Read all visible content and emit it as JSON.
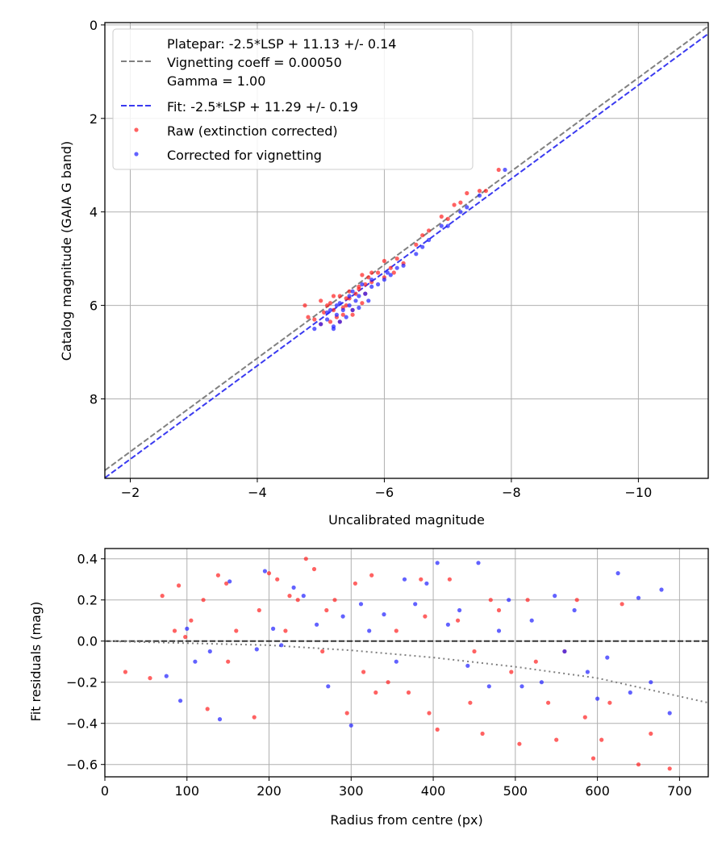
{
  "chart_data": [
    {
      "type": "scatter",
      "title": "",
      "xlabel": "Uncalibrated magnitude",
      "ylabel": "Catalog magnitude (GAIA G band)",
      "xlim": [
        -1.6,
        -11.1
      ],
      "ylim": [
        9.7,
        -0.05
      ],
      "x_inverted": true,
      "y_inverted": true,
      "grid": true,
      "xticks": [
        -2,
        -4,
        -6,
        -8,
        -10
      ],
      "xtick_labels": [
        "−2",
        "−4",
        "−6",
        "−8",
        "−10"
      ],
      "yticks": [
        0,
        2,
        4,
        6,
        8
      ],
      "ytick_labels": [
        "0",
        "2",
        "4",
        "6",
        "8"
      ],
      "legend_position": "top-left",
      "legend": [
        {
          "label": "Platepar: -2.5*LSP + 11.13 +/- 0.14",
          "marker": "none"
        },
        {
          "label": "Vignetting coeff = 0.00050",
          "marker": "dashed-line",
          "color": "#808080"
        },
        {
          "label": "Gamma = 1.00",
          "marker": "none"
        },
        {
          "label": "Fit: -2.5*LSP + 11.29 +/- 0.19",
          "marker": "dashed-line",
          "color": "#3a3af0"
        },
        {
          "label": "Raw (extinction corrected)",
          "marker": "dot",
          "color": "#ff2020"
        },
        {
          "label": "Corrected for vignetting",
          "marker": "dot",
          "color": "#2020ff"
        }
      ],
      "lines": [
        {
          "name": "Platepar",
          "style": "dashed",
          "color": "#808080",
          "slope": 1,
          "intercept": 11.13
        },
        {
          "name": "Fit",
          "style": "dashed",
          "color": "#3a3af0",
          "slope": 1,
          "intercept": 11.29
        }
      ],
      "series": [
        {
          "name": "Raw (extinction corrected)",
          "color": "#ff2020",
          "x": [
            -4.8,
            -4.9,
            -5.0,
            -5.05,
            -5.1,
            -5.15,
            -5.2,
            -5.25,
            -5.3,
            -5.35,
            -5.4,
            -5.45,
            -5.5,
            -5.55,
            -5.6,
            -5.65,
            -5.7,
            -5.75,
            -5.8,
            -5.9,
            -6.0,
            -6.1,
            -6.2,
            -6.3,
            -6.5,
            -6.6,
            -6.7,
            -6.9,
            -7.0,
            -7.1,
            -7.2,
            -7.3,
            -7.5,
            -7.6,
            -7.8,
            -5.2,
            -5.3,
            -5.4,
            -5.6,
            -5.8,
            -5.0,
            -5.5,
            -5.7,
            -6.0,
            -5.35,
            -5.15,
            -4.75,
            -5.45,
            -5.65,
            -6.15
          ],
          "y": [
            6.25,
            6.3,
            5.9,
            6.15,
            6.0,
            5.95,
            6.1,
            6.25,
            5.8,
            6.05,
            6.0,
            5.7,
            6.1,
            5.75,
            5.6,
            5.95,
            5.55,
            5.4,
            5.5,
            5.3,
            5.4,
            5.2,
            5.0,
            5.1,
            4.7,
            4.5,
            4.4,
            4.1,
            4.15,
            3.85,
            3.8,
            3.6,
            3.55,
            3.55,
            3.1,
            5.8,
            6.35,
            5.85,
            5.65,
            5.3,
            6.4,
            6.2,
            5.75,
            5.05,
            6.2,
            6.35,
            6.0,
            5.85,
            5.35,
            5.3
          ]
        },
        {
          "name": "Corrected for vignetting",
          "color": "#2020ff",
          "x": [
            -4.9,
            -5.0,
            -5.1,
            -5.15,
            -5.2,
            -5.25,
            -5.3,
            -5.35,
            -5.4,
            -5.45,
            -5.5,
            -5.55,
            -5.6,
            -5.7,
            -5.75,
            -5.8,
            -5.9,
            -6.0,
            -6.1,
            -6.2,
            -6.3,
            -6.5,
            -6.6,
            -6.7,
            -6.9,
            -7.0,
            -7.2,
            -7.3,
            -7.5,
            -7.9,
            -5.1,
            -5.25,
            -5.45,
            -5.6,
            -5.3,
            -5.5,
            -5.8,
            -6.05,
            -5.2,
            -5.65
          ],
          "y": [
            6.5,
            6.4,
            6.3,
            6.1,
            6.45,
            6.2,
            6.35,
            6.1,
            6.25,
            6.0,
            6.1,
            5.9,
            5.8,
            5.75,
            5.9,
            5.6,
            5.55,
            5.45,
            5.35,
            5.2,
            5.15,
            4.9,
            4.75,
            4.6,
            4.3,
            4.3,
            4.0,
            3.9,
            3.65,
            3.1,
            6.15,
            6.0,
            5.8,
            6.05,
            5.95,
            5.7,
            5.45,
            5.3,
            6.5,
            5.55
          ]
        }
      ]
    },
    {
      "type": "scatter",
      "title": "",
      "xlabel": "Radius from centre (px)",
      "ylabel": "Fit residuals (mag)",
      "xlim": [
        0,
        735
      ],
      "ylim": [
        -0.66,
        0.45
      ],
      "grid": true,
      "xticks": [
        0,
        100,
        200,
        300,
        400,
        500,
        600,
        700
      ],
      "xtick_labels": [
        "0",
        "100",
        "200",
        "300",
        "400",
        "500",
        "600",
        "700"
      ],
      "yticks": [
        0.4,
        0.2,
        0.0,
        -0.2,
        -0.4,
        -0.6
      ],
      "ytick_labels": [
        "0.4",
        "0.2",
        "0.0",
        "−0.2",
        "−0.4",
        "−0.6"
      ],
      "lines": [
        {
          "name": "zero",
          "style": "dashed",
          "color": "#333333",
          "x": [
            0,
            735
          ],
          "y": [
            0,
            0
          ]
        },
        {
          "name": "vignetting trend",
          "style": "dotted",
          "color": "#808080",
          "x": [
            0,
            100,
            200,
            300,
            400,
            500,
            600,
            735
          ],
          "y": [
            0.0,
            -0.01,
            -0.02,
            -0.045,
            -0.08,
            -0.125,
            -0.18,
            -0.3
          ]
        }
      ],
      "series": [
        {
          "name": "Raw (extinction corrected)",
          "color": "#ff2020",
          "x": [
            25,
            55,
            70,
            85,
            90,
            98,
            105,
            120,
            125,
            138,
            148,
            160,
            182,
            188,
            200,
            210,
            225,
            235,
            245,
            255,
            265,
            280,
            295,
            305,
            315,
            325,
            345,
            355,
            370,
            385,
            395,
            405,
            420,
            430,
            445,
            460,
            470,
            480,
            495,
            505,
            515,
            525,
            540,
            550,
            560,
            575,
            585,
            595,
            605,
            615,
            630,
            650,
            665,
            688,
            150,
            220,
            270,
            330,
            390,
            450
          ],
          "x_note": "radius px",
          "y": [
            -0.15,
            -0.18,
            0.22,
            0.05,
            0.27,
            0.02,
            0.1,
            0.2,
            -0.33,
            0.32,
            0.28,
            0.05,
            -0.37,
            0.15,
            0.33,
            0.3,
            0.22,
            0.2,
            0.4,
            0.35,
            -0.05,
            0.2,
            -0.35,
            0.28,
            -0.15,
            0.32,
            -0.2,
            0.05,
            -0.25,
            0.3,
            -0.35,
            -0.43,
            0.3,
            0.1,
            -0.3,
            -0.45,
            0.2,
            0.15,
            -0.15,
            -0.5,
            0.2,
            -0.1,
            -0.3,
            -0.48,
            -0.05,
            0.2,
            -0.37,
            -0.57,
            -0.48,
            -0.3,
            0.18,
            -0.6,
            -0.45,
            -0.62,
            -0.1,
            0.05,
            0.15,
            -0.25,
            0.12,
            -0.05
          ]
        },
        {
          "name": "Corrected for vignetting",
          "color": "#2020ff",
          "x": [
            75,
            92,
            100,
            110,
            128,
            140,
            152,
            185,
            195,
            205,
            215,
            230,
            242,
            258,
            272,
            290,
            300,
            312,
            322,
            340,
            355,
            365,
            378,
            392,
            405,
            418,
            432,
            442,
            455,
            468,
            480,
            492,
            508,
            520,
            532,
            548,
            560,
            572,
            588,
            600,
            612,
            625,
            640,
            650,
            665,
            678,
            688
          ],
          "y": [
            -0.17,
            -0.29,
            0.06,
            -0.1,
            -0.05,
            -0.38,
            0.29,
            -0.04,
            0.34,
            0.06,
            -0.02,
            0.26,
            0.22,
            0.08,
            -0.22,
            0.12,
            -0.41,
            0.18,
            0.05,
            0.13,
            -0.1,
            0.3,
            0.18,
            0.28,
            0.38,
            0.08,
            0.15,
            -0.12,
            0.38,
            -0.22,
            0.05,
            0.2,
            -0.22,
            0.1,
            -0.2,
            0.22,
            -0.05,
            0.15,
            -0.15,
            -0.28,
            -0.08,
            0.33,
            -0.25,
            0.21,
            -0.2,
            0.25,
            -0.35
          ]
        }
      ]
    }
  ]
}
